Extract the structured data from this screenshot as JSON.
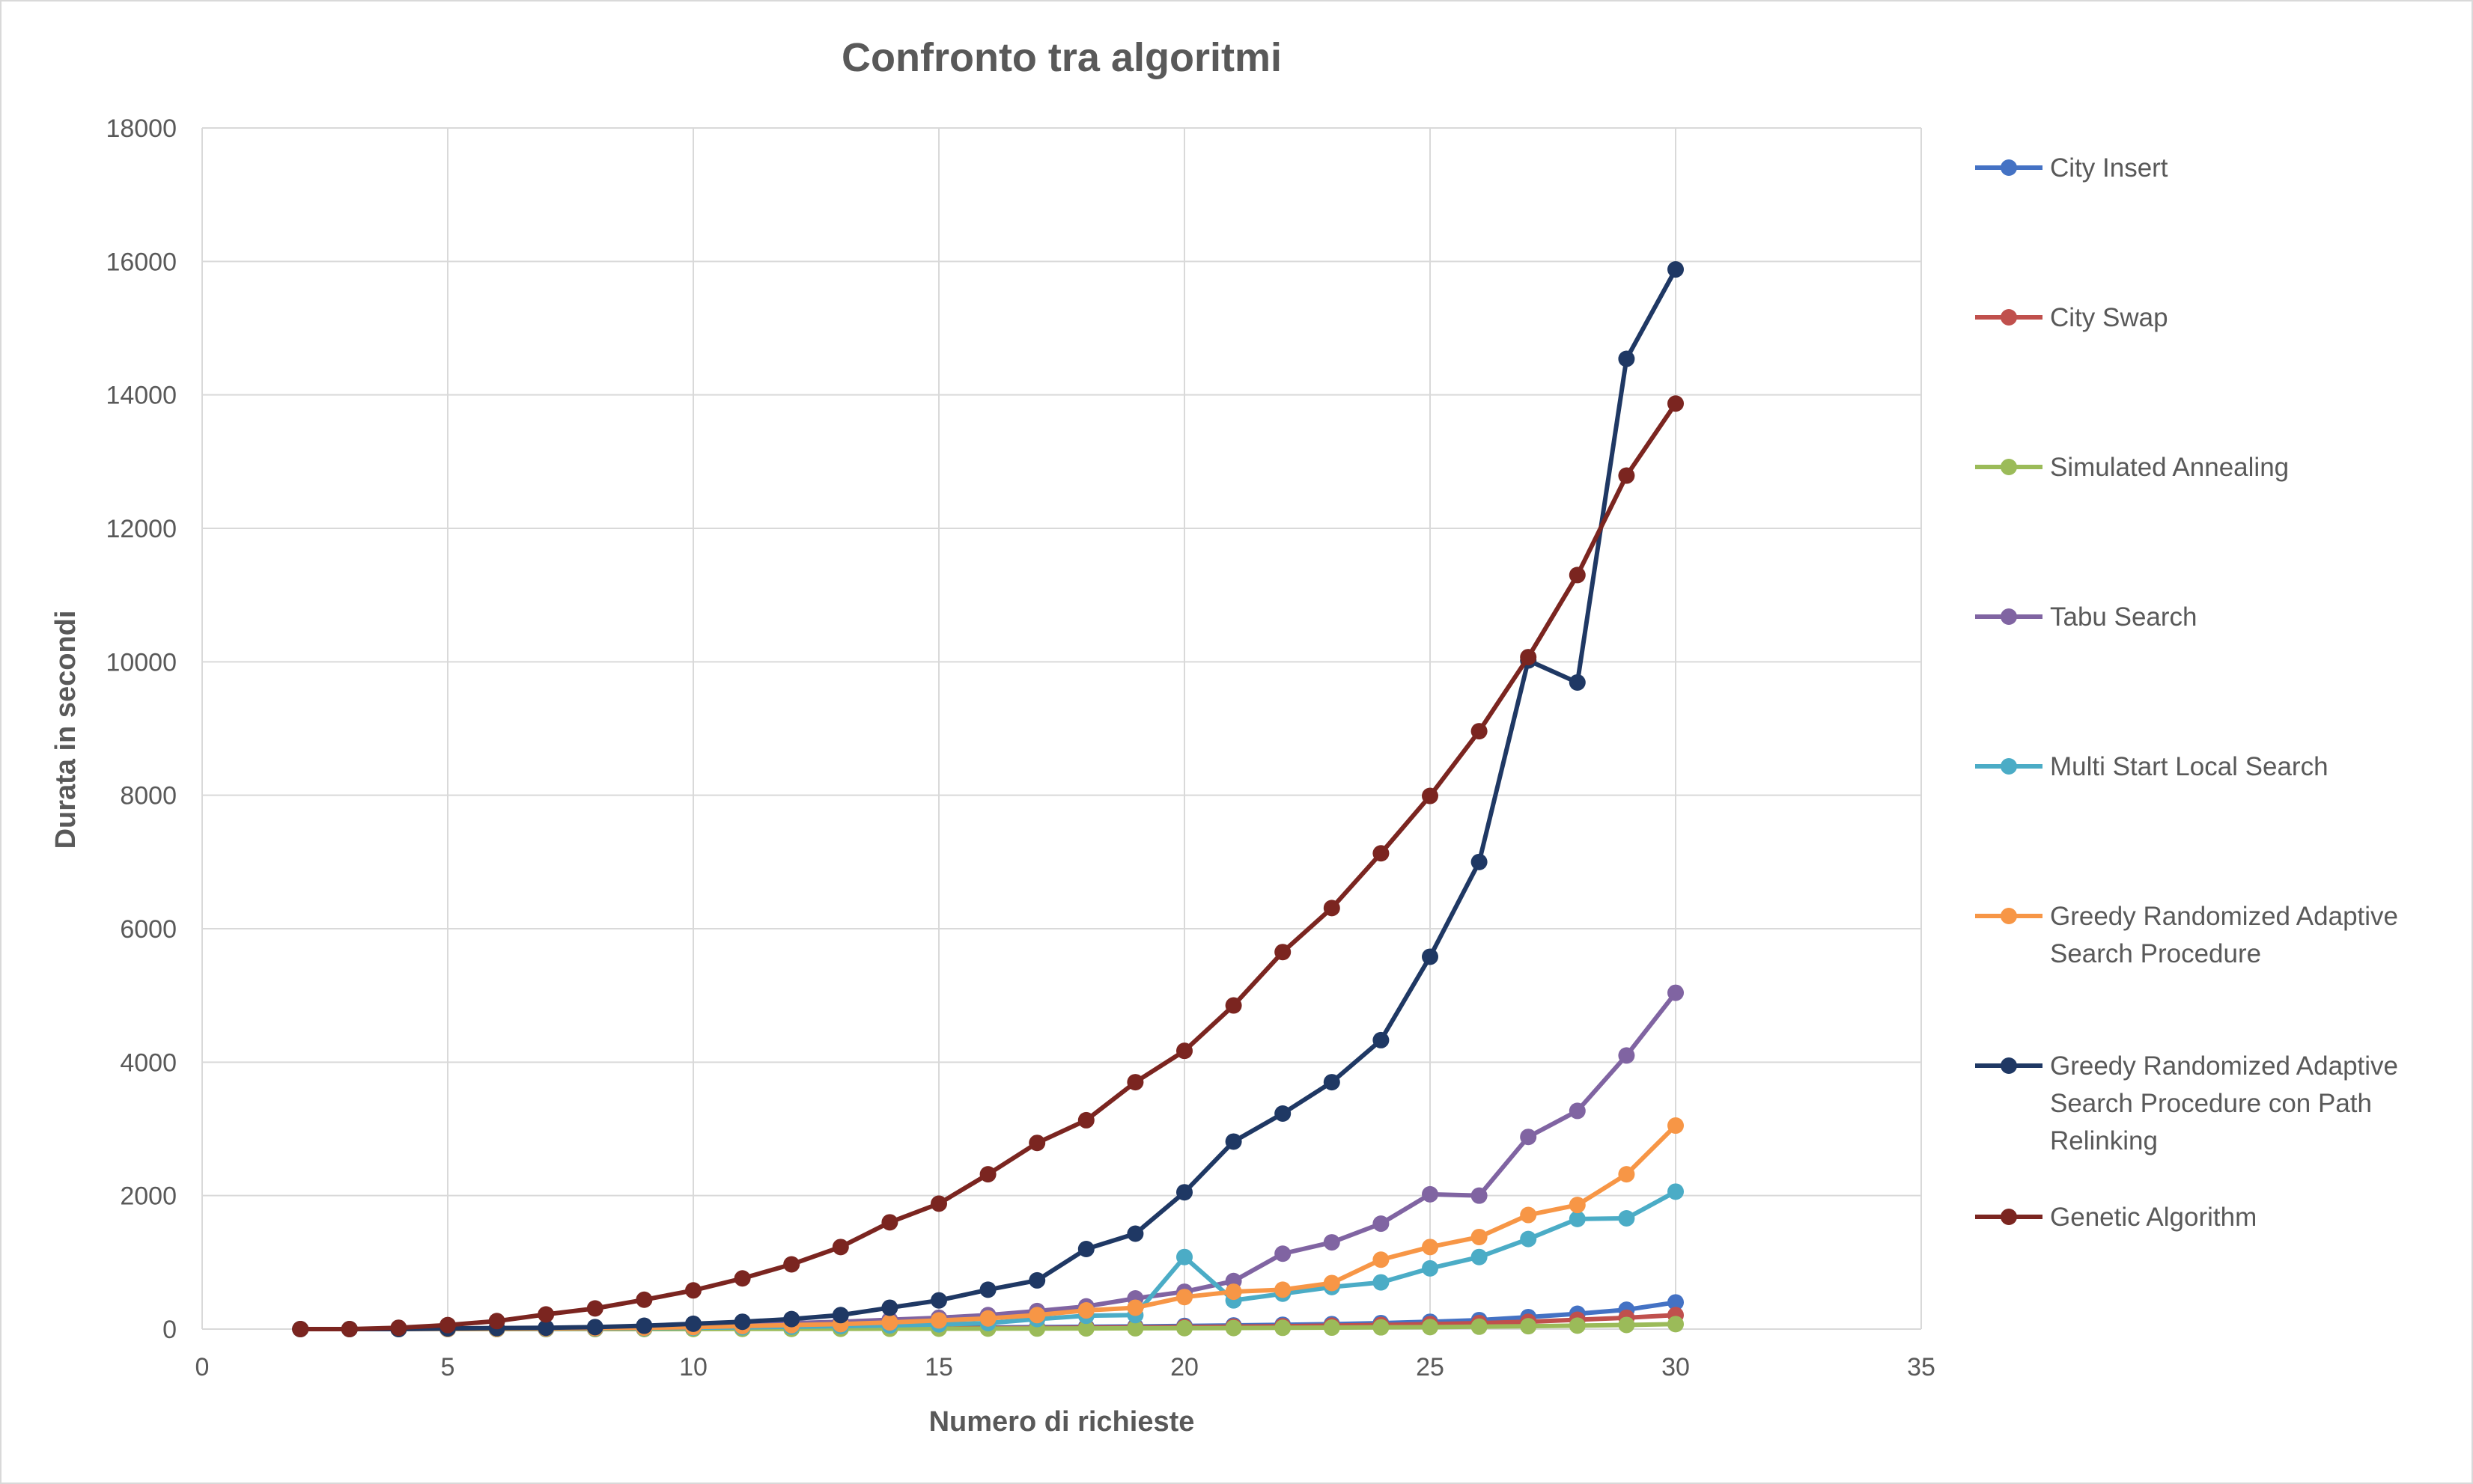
{
  "chart_data": {
    "type": "scatter",
    "title": "Confronto tra algoritmi",
    "xlabel": "Numero di richieste",
    "ylabel": "Durata in secondi",
    "xlim": [
      0,
      35
    ],
    "ylim": [
      0,
      18000
    ],
    "xticks": [
      "0",
      "5",
      "10",
      "15",
      "20",
      "25",
      "30",
      "35"
    ],
    "yticks": [
      "0",
      "2000",
      "4000",
      "6000",
      "8000",
      "10000",
      "12000",
      "14000",
      "16000",
      "18000"
    ],
    "grid": true,
    "legend_position": "right",
    "x": [
      2,
      3,
      4,
      5,
      6,
      7,
      8,
      9,
      10,
      11,
      12,
      13,
      14,
      15,
      16,
      17,
      18,
      19,
      20,
      21,
      22,
      23,
      24,
      25,
      26,
      27,
      28,
      29,
      30
    ],
    "series": [
      {
        "name": "City Insert",
        "color": "#4472c4",
        "values": [
          0,
          0,
          0,
          0,
          1,
          2,
          3,
          4,
          6,
          8,
          10,
          13,
          16,
          20,
          25,
          30,
          35,
          40,
          48,
          55,
          65,
          75,
          90,
          110,
          135,
          180,
          230,
          290,
          400
        ],
        "legend_lines": [
          "City Insert"
        ]
      },
      {
        "name": "City Swap",
        "color": "#c0504d",
        "values": [
          0,
          0,
          0,
          0,
          1,
          1,
          2,
          3,
          4,
          5,
          6,
          8,
          10,
          12,
          15,
          18,
          22,
          26,
          31,
          37,
          44,
          52,
          62,
          75,
          90,
          110,
          140,
          170,
          210
        ],
        "legend_lines": [
          "City Swap"
        ]
      },
      {
        "name": "Simulated Annealing",
        "color": "#9bbb59",
        "values": [
          0,
          0,
          0,
          0,
          0,
          1,
          1,
          2,
          2,
          3,
          3,
          4,
          5,
          6,
          7,
          8,
          10,
          12,
          14,
          16,
          19,
          22,
          26,
          30,
          36,
          43,
          52,
          62,
          75
        ],
        "legend_lines": [
          "Simulated Annealing"
        ]
      },
      {
        "name": "Tabu Search",
        "color": "#8064a2",
        "values": [
          0,
          0,
          0,
          5,
          10,
          15,
          25,
          35,
          50,
          70,
          90,
          110,
          140,
          170,
          210,
          270,
          340,
          460,
          560,
          720,
          1130,
          1300,
          1580,
          2020,
          2000,
          2880,
          3270,
          4100,
          5040
        ],
        "legend_lines": [
          "Tabu Search"
        ]
      },
      {
        "name": "Multi Start Local Search",
        "color": "#4bacc6",
        "values": [
          0,
          0,
          0,
          2,
          4,
          6,
          10,
          14,
          20,
          27,
          35,
          45,
          55,
          70,
          90,
          150,
          200,
          210,
          1080,
          430,
          530,
          630,
          700,
          910,
          1080,
          1350,
          1650,
          1660,
          2060
        ],
        "legend_lines": [
          "Multi Start Local Search"
        ]
      },
      {
        "name": "Greedy Randomized Adaptive Search Procedure",
        "color": "#f79646",
        "values": [
          0,
          0,
          0,
          3,
          6,
          10,
          15,
          20,
          30,
          45,
          60,
          75,
          100,
          130,
          160,
          210,
          280,
          320,
          480,
          560,
          590,
          690,
          1040,
          1230,
          1380,
          1710,
          1860,
          2320,
          3050
        ],
        "legend_lines": [
          "Greedy Randomized Adaptive",
          "Search Procedure"
        ]
      },
      {
        "name": "Greedy Randomized Adaptive Search Procedure con Path Relinking",
        "color": "#1f3864",
        "values": [
          0,
          0,
          0,
          10,
          15,
          20,
          30,
          50,
          80,
          110,
          150,
          210,
          320,
          430,
          590,
          730,
          1200,
          1430,
          2050,
          2810,
          3230,
          3700,
          4330,
          5580,
          7000,
          10020,
          9690,
          14540,
          15880
        ],
        "legend_lines": [
          "Greedy Randomized Adaptive",
          "Search Procedure con Path",
          "Relinking"
        ]
      },
      {
        "name": "Genetic Algorithm",
        "color": "#7b2520",
        "values": [
          0,
          0,
          20,
          60,
          120,
          220,
          310,
          440,
          580,
          760,
          970,
          1230,
          1600,
          1880,
          2320,
          2790,
          3130,
          3700,
          4170,
          4850,
          5650,
          6310,
          7130,
          7990,
          8960,
          10070,
          11300,
          12790,
          13870
        ],
        "legend_lines": [
          "Genetic Algorithm"
        ]
      }
    ]
  }
}
